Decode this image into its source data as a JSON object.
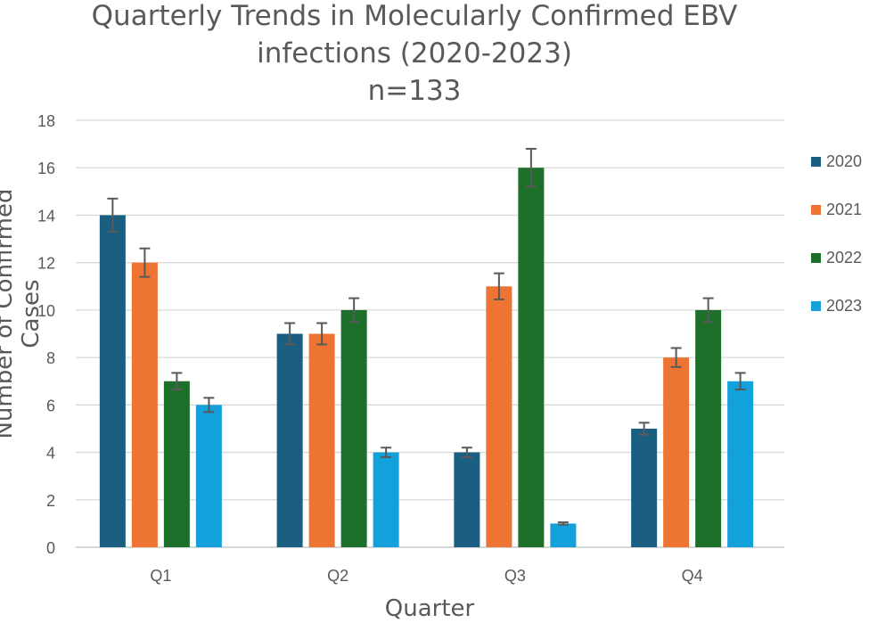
{
  "chart_data": {
    "type": "bar",
    "title": [
      "Quarterly Trends in Molecularly Confirmed EBV",
      "infections (2020-2023)",
      "n=133"
    ],
    "xlabel": "Quarter",
    "ylabel": "Number of Confirmed Cases",
    "categories": [
      "Q1",
      "Q2",
      "Q3",
      "Q4"
    ],
    "ylim": [
      0,
      18
    ],
    "yticks": [
      0,
      2,
      4,
      6,
      8,
      10,
      12,
      14,
      16,
      18
    ],
    "grid": true,
    "legend_position": "right",
    "error_bars": true,
    "series": [
      {
        "name": "2020",
        "color": "#1a5e82",
        "values": [
          14,
          9,
          4,
          5
        ],
        "errors": [
          0.7,
          0.45,
          0.2,
          0.25
        ]
      },
      {
        "name": "2021",
        "color": "#ee7433",
        "values": [
          12,
          9,
          11,
          8
        ],
        "errors": [
          0.6,
          0.45,
          0.55,
          0.4
        ]
      },
      {
        "name": "2022",
        "color": "#1e6f2a",
        "values": [
          7,
          10,
          16,
          10
        ],
        "errors": [
          0.35,
          0.5,
          0.8,
          0.5
        ]
      },
      {
        "name": "2023",
        "color": "#13a1dc",
        "values": [
          6,
          4,
          1,
          7
        ],
        "errors": [
          0.3,
          0.2,
          0.05,
          0.35
        ]
      }
    ]
  }
}
